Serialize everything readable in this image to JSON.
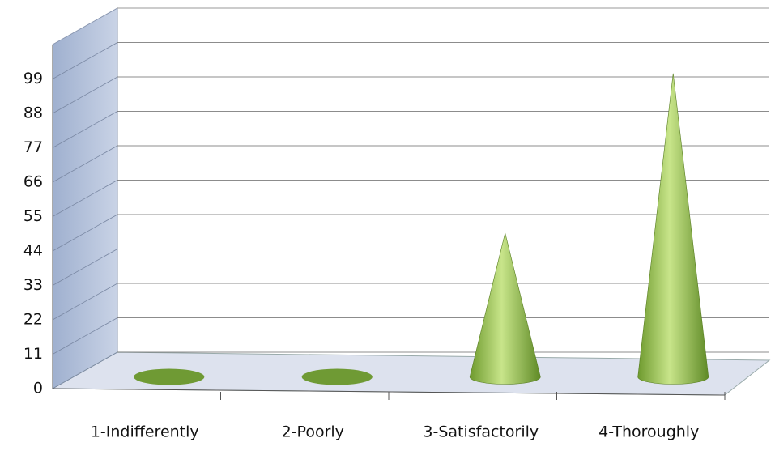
{
  "chart_data": {
    "type": "cone",
    "categories": [
      "1-Indifferently",
      "2-Poorly",
      "3-Satisfactorily",
      "4-Thoroughly"
    ],
    "values": [
      0,
      0,
      46,
      97
    ],
    "color": "#8fbf4a",
    "ylim": [
      0,
      110
    ],
    "yticks": [
      0,
      11,
      22,
      33,
      44,
      55,
      66,
      77,
      88,
      99
    ],
    "grid": true
  }
}
